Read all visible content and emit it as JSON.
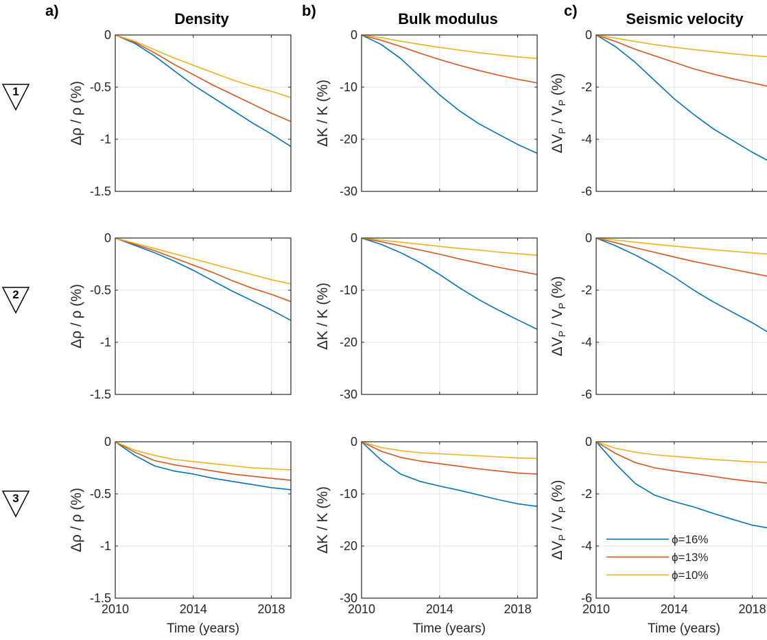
{
  "colors": {
    "phi16": "#0072BD",
    "phi13": "#D95319",
    "phi10": "#EDB120",
    "grid": "#e3e3e3",
    "axis": "#262626"
  },
  "columns": [
    {
      "letter": "a)",
      "title": "Density"
    },
    {
      "letter": "b)",
      "title": "Bulk modulus"
    },
    {
      "letter": "c)",
      "title": "Seismic velocity"
    }
  ],
  "rows": [
    {
      "marker": "1",
      "marker_icon": "inverted-triangle-icon"
    },
    {
      "marker": "2",
      "marker_icon": "inverted-triangle-icon"
    },
    {
      "marker": "3",
      "marker_icon": "inverted-triangle-icon"
    }
  ],
  "legend": {
    "items": [
      "ϕ=16%",
      "ϕ=13%",
      "ϕ=10%"
    ]
  },
  "chart_data": [
    {
      "type": "line",
      "panel": "row1-density",
      "xlabel": "",
      "ylabel": "Δρ / ρ (%)",
      "xlim": [
        2010,
        2019
      ],
      "ylim": [
        -1.5,
        0
      ],
      "xticks": [
        2010,
        2014,
        2018
      ],
      "yticks": [
        "0",
        "-0.5",
        "-1",
        "-1.5"
      ],
      "grid": true,
      "x": [
        2010,
        2011,
        2012,
        2013,
        2014,
        2015,
        2016,
        2017,
        2018,
        2019
      ],
      "series": [
        {
          "name": "ϕ=16%",
          "color": "phi16",
          "values": [
            0,
            -0.08,
            -0.2,
            -0.34,
            -0.48,
            -0.6,
            -0.72,
            -0.84,
            -0.95,
            -1.07
          ]
        },
        {
          "name": "ϕ=13%",
          "color": "phi13",
          "values": [
            0,
            -0.07,
            -0.17,
            -0.28,
            -0.38,
            -0.48,
            -0.57,
            -0.66,
            -0.75,
            -0.83
          ]
        },
        {
          "name": "ϕ=10%",
          "color": "phi10",
          "values": [
            0,
            -0.06,
            -0.14,
            -0.22,
            -0.29,
            -0.36,
            -0.43,
            -0.49,
            -0.54,
            -0.6
          ]
        }
      ]
    },
    {
      "type": "line",
      "panel": "row1-bulk",
      "xlabel": "",
      "ylabel": "ΔK / K (%)",
      "xlim": [
        2010,
        2019
      ],
      "ylim": [
        -30,
        0
      ],
      "xticks": [
        2010,
        2014,
        2018
      ],
      "yticks": [
        "0",
        "-10",
        "-20",
        "-30"
      ],
      "grid": true,
      "x": [
        2010,
        2011,
        2012,
        2013,
        2014,
        2015,
        2016,
        2017,
        2018,
        2019
      ],
      "series": [
        {
          "name": "ϕ=16%",
          "color": "phi16",
          "values": [
            0,
            -1.8,
            -4.5,
            -8,
            -11.5,
            -14.5,
            -17,
            -19,
            -21,
            -22.7
          ]
        },
        {
          "name": "ϕ=13%",
          "color": "phi13",
          "values": [
            0,
            -1,
            -2.2,
            -3.5,
            -4.7,
            -5.8,
            -6.8,
            -7.7,
            -8.5,
            -9.2
          ]
        },
        {
          "name": "ϕ=10%",
          "color": "phi10",
          "values": [
            0,
            -0.5,
            -1.2,
            -1.8,
            -2.4,
            -2.9,
            -3.4,
            -3.8,
            -4.2,
            -4.5
          ]
        }
      ]
    },
    {
      "type": "line",
      "panel": "row1-velocity",
      "xlabel": "",
      "ylabel": "ΔVP / VP (%)",
      "xlim": [
        2010,
        2019
      ],
      "ylim": [
        -6,
        0
      ],
      "xticks": [
        2010,
        2014,
        2018
      ],
      "yticks": [
        "0",
        "-2",
        "-4",
        "-6"
      ],
      "grid": true,
      "x": [
        2010,
        2011,
        2012,
        2013,
        2014,
        2015,
        2016,
        2017,
        2018,
        2019
      ],
      "series": [
        {
          "name": "ϕ=16%",
          "color": "phi16",
          "values": [
            0,
            -0.45,
            -1.05,
            -1.75,
            -2.45,
            -3.05,
            -3.6,
            -4.05,
            -4.5,
            -4.9
          ]
        },
        {
          "name": "ϕ=13%",
          "color": "phi13",
          "values": [
            0,
            -0.25,
            -0.55,
            -0.8,
            -1.05,
            -1.3,
            -1.5,
            -1.68,
            -1.84,
            -2
          ]
        },
        {
          "name": "ϕ=10%",
          "color": "phi10",
          "values": [
            0,
            -0.12,
            -0.25,
            -0.37,
            -0.47,
            -0.56,
            -0.64,
            -0.72,
            -0.79,
            -0.85
          ]
        }
      ]
    },
    {
      "type": "line",
      "panel": "row2-density",
      "xlabel": "",
      "ylabel": "Δρ / ρ (%)",
      "xlim": [
        2010,
        2019
      ],
      "ylim": [
        -1.5,
        0
      ],
      "xticks": [
        2010,
        2014,
        2018
      ],
      "yticks": [
        "0",
        "-0.5",
        "-1",
        "-1.5"
      ],
      "grid": true,
      "x": [
        2010,
        2011,
        2012,
        2013,
        2014,
        2015,
        2016,
        2017,
        2018,
        2019
      ],
      "series": [
        {
          "name": "ϕ=16%",
          "color": "phi16",
          "values": [
            0,
            -0.07,
            -0.14,
            -0.22,
            -0.31,
            -0.41,
            -0.51,
            -0.6,
            -0.69,
            -0.79
          ]
        },
        {
          "name": "ϕ=13%",
          "color": "phi13",
          "values": [
            0,
            -0.06,
            -0.12,
            -0.19,
            -0.26,
            -0.33,
            -0.41,
            -0.48,
            -0.54,
            -0.61
          ]
        },
        {
          "name": "ϕ=10%",
          "color": "phi10",
          "values": [
            0,
            -0.05,
            -0.1,
            -0.15,
            -0.2,
            -0.25,
            -0.3,
            -0.35,
            -0.4,
            -0.44
          ]
        }
      ]
    },
    {
      "type": "line",
      "panel": "row2-bulk",
      "xlabel": "",
      "ylabel": "ΔK / K (%)",
      "xlim": [
        2010,
        2019
      ],
      "ylim": [
        -30,
        0
      ],
      "xticks": [
        2010,
        2014,
        2018
      ],
      "yticks": [
        "0",
        "-10",
        "-20",
        "-30"
      ],
      "grid": true,
      "x": [
        2010,
        2011,
        2012,
        2013,
        2014,
        2015,
        2016,
        2017,
        2018,
        2019
      ],
      "series": [
        {
          "name": "ϕ=16%",
          "color": "phi16",
          "values": [
            0,
            -1.2,
            -2.8,
            -4.7,
            -7,
            -9.5,
            -11.8,
            -13.8,
            -15.7,
            -17.5
          ]
        },
        {
          "name": "ϕ=13%",
          "color": "phi13",
          "values": [
            0,
            -0.7,
            -1.5,
            -2.3,
            -3.1,
            -4,
            -4.8,
            -5.6,
            -6.3,
            -7
          ]
        },
        {
          "name": "ϕ=10%",
          "color": "phi10",
          "values": [
            0,
            -0.4,
            -0.8,
            -1.2,
            -1.6,
            -2,
            -2.3,
            -2.7,
            -3,
            -3.3
          ]
        }
      ]
    },
    {
      "type": "line",
      "panel": "row2-velocity",
      "xlabel": "",
      "ylabel": "ΔVP / VP (%)",
      "xlim": [
        2010,
        2019
      ],
      "ylim": [
        -6,
        0
      ],
      "xticks": [
        2010,
        2014,
        2018
      ],
      "yticks": [
        "0",
        "-2",
        "-4",
        "-6"
      ],
      "grid": true,
      "x": [
        2010,
        2011,
        2012,
        2013,
        2014,
        2015,
        2016,
        2017,
        2018,
        2019
      ],
      "series": [
        {
          "name": "ϕ=16%",
          "color": "phi16",
          "values": [
            0,
            -0.3,
            -0.65,
            -1.05,
            -1.5,
            -2,
            -2.45,
            -2.85,
            -3.25,
            -3.7
          ]
        },
        {
          "name": "ϕ=13%",
          "color": "phi13",
          "values": [
            0,
            -0.18,
            -0.37,
            -0.55,
            -0.73,
            -0.9,
            -1.05,
            -1.2,
            -1.35,
            -1.5
          ]
        },
        {
          "name": "ϕ=10%",
          "color": "phi10",
          "values": [
            0,
            -0.08,
            -0.16,
            -0.24,
            -0.31,
            -0.38,
            -0.45,
            -0.51,
            -0.57,
            -0.63
          ]
        }
      ]
    },
    {
      "type": "line",
      "panel": "row3-density",
      "xlabel": "Time (years)",
      "ylabel": "Δρ / ρ (%)",
      "xlim": [
        2010,
        2019
      ],
      "ylim": [
        -1.5,
        0
      ],
      "xticks": [
        2010,
        2014,
        2018
      ],
      "yticks": [
        "0",
        "-0.5",
        "-1",
        "-1.5"
      ],
      "grid": true,
      "x": [
        2010,
        2011,
        2012,
        2013,
        2014,
        2015,
        2016,
        2017,
        2018,
        2019
      ],
      "series": [
        {
          "name": "ϕ=16%",
          "color": "phi16",
          "values": [
            0,
            -0.13,
            -0.23,
            -0.28,
            -0.31,
            -0.35,
            -0.38,
            -0.41,
            -0.44,
            -0.46
          ]
        },
        {
          "name": "ϕ=13%",
          "color": "phi13",
          "values": [
            0,
            -0.1,
            -0.18,
            -0.22,
            -0.25,
            -0.28,
            -0.31,
            -0.33,
            -0.35,
            -0.37
          ]
        },
        {
          "name": "ϕ=10%",
          "color": "phi10",
          "values": [
            0,
            -0.08,
            -0.13,
            -0.17,
            -0.19,
            -0.21,
            -0.23,
            -0.25,
            -0.26,
            -0.27
          ]
        }
      ]
    },
    {
      "type": "line",
      "panel": "row3-bulk",
      "xlabel": "Time (years)",
      "ylabel": "ΔK / K (%)",
      "xlim": [
        2010,
        2019
      ],
      "ylim": [
        -30,
        0
      ],
      "xticks": [
        2010,
        2014,
        2018
      ],
      "yticks": [
        "0",
        "-10",
        "-20",
        "-30"
      ],
      "grid": true,
      "x": [
        2010,
        2011,
        2012,
        2013,
        2014,
        2015,
        2016,
        2017,
        2018,
        2019
      ],
      "series": [
        {
          "name": "ϕ=16%",
          "color": "phi16",
          "values": [
            0,
            -3.5,
            -6.2,
            -7.6,
            -8.5,
            -9.3,
            -10.2,
            -11.1,
            -11.9,
            -12.4
          ]
        },
        {
          "name": "ϕ=13%",
          "color": "phi13",
          "values": [
            0,
            -1.8,
            -3,
            -3.7,
            -4.2,
            -4.7,
            -5.2,
            -5.6,
            -6,
            -6.2
          ]
        },
        {
          "name": "ϕ=10%",
          "color": "phi10",
          "values": [
            0,
            -1.1,
            -1.7,
            -2.1,
            -2.3,
            -2.5,
            -2.7,
            -2.9,
            -3.1,
            -3.2
          ]
        }
      ]
    },
    {
      "type": "line",
      "panel": "row3-velocity",
      "xlabel": "Time (years)",
      "ylabel": "ΔVP / VP (%)",
      "xlim": [
        2010,
        2019
      ],
      "ylim": [
        -6,
        0
      ],
      "xticks": [
        2010,
        2014,
        2018
      ],
      "yticks": [
        "0",
        "-2",
        "-4",
        "-6"
      ],
      "grid": true,
      "legend": "bottom-right",
      "x": [
        2010,
        2011,
        2012,
        2013,
        2014,
        2015,
        2016,
        2017,
        2018,
        2019
      ],
      "series": [
        {
          "name": "ϕ=16%",
          "color": "phi16",
          "values": [
            0,
            -0.85,
            -1.6,
            -2.05,
            -2.3,
            -2.5,
            -2.75,
            -2.98,
            -3.2,
            -3.33
          ]
        },
        {
          "name": "ϕ=13%",
          "color": "phi13",
          "values": [
            0,
            -0.45,
            -0.8,
            -1,
            -1.12,
            -1.22,
            -1.33,
            -1.44,
            -1.53,
            -1.6
          ]
        },
        {
          "name": "ϕ=10%",
          "color": "phi10",
          "values": [
            0,
            -0.25,
            -0.4,
            -0.5,
            -0.56,
            -0.62,
            -0.68,
            -0.73,
            -0.77,
            -0.8
          ]
        }
      ]
    }
  ]
}
